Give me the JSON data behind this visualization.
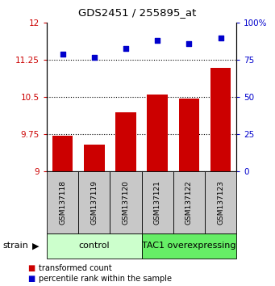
{
  "title": "GDS2451 / 255895_at",
  "samples": [
    "GSM137118",
    "GSM137119",
    "GSM137120",
    "GSM137121",
    "GSM137122",
    "GSM137123"
  ],
  "bar_values": [
    9.72,
    9.55,
    10.2,
    10.55,
    10.48,
    11.1
  ],
  "scatter_values": [
    79,
    77,
    83,
    88,
    86,
    90
  ],
  "bar_color": "#cc0000",
  "scatter_color": "#0000cc",
  "ylim_left": [
    9,
    12
  ],
  "ylim_right": [
    0,
    100
  ],
  "yticks_left": [
    9,
    9.75,
    10.5,
    11.25,
    12
  ],
  "yticks_right": [
    0,
    25,
    50,
    75,
    100
  ],
  "ytick_labels_left": [
    "9",
    "9.75",
    "10.5",
    "11.25",
    "12"
  ],
  "ytick_labels_right": [
    "0",
    "25",
    "50",
    "75",
    "100%"
  ],
  "groups": [
    {
      "label": "control",
      "indices": [
        0,
        1,
        2
      ],
      "color": "#ccffcc"
    },
    {
      "label": "TAC1 overexpressing",
      "indices": [
        3,
        4,
        5
      ],
      "color": "#66ee66"
    }
  ],
  "legend_bar_label": "transformed count",
  "legend_scatter_label": "percentile rank within the sample",
  "bar_bottom": 9,
  "bar_width": 0.65,
  "gray_color": "#c8c8c8",
  "sample_fontsize": 6.5,
  "group_fontsize": 8,
  "tick_fontsize": 7.5,
  "title_fontsize": 9.5,
  "legend_fontsize": 7
}
